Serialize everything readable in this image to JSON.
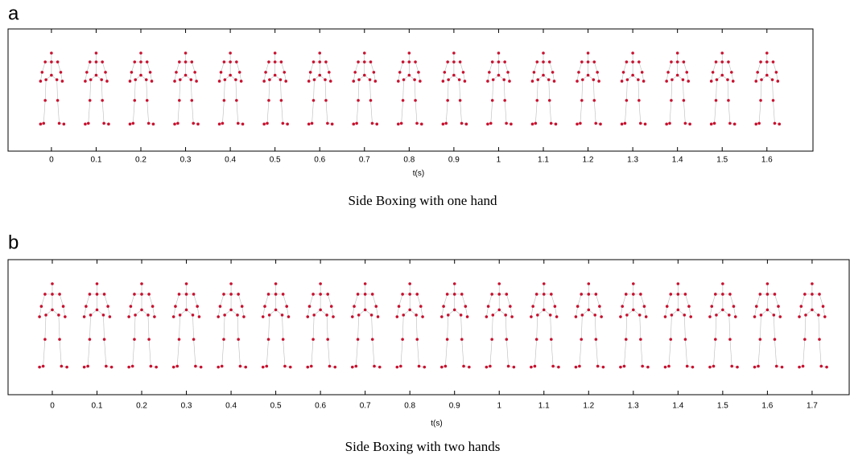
{
  "chart_data": [
    {
      "type": "skeleton-sequence",
      "panel_label": "a",
      "title": "Side Boxing with one hand",
      "xlabel": "t(s)",
      "xlim": [
        -0.097,
        1.703
      ],
      "xticks": [
        0,
        0.1,
        0.2,
        0.3,
        0.4,
        0.5,
        0.6,
        0.7,
        0.8,
        0.9,
        1,
        1.1,
        1.2,
        1.3,
        1.4,
        1.5,
        1.6
      ],
      "color": "#c8102e"
    },
    {
      "type": "skeleton-sequence",
      "panel_label": "b",
      "title": "Side Boxing with two hands",
      "xlabel": "t(s)",
      "xlim": [
        -0.099,
        1.783
      ],
      "xticks": [
        0,
        0.1,
        0.2,
        0.3,
        0.4,
        0.5,
        0.6,
        0.7,
        0.8,
        0.9,
        1,
        1.1,
        1.2,
        1.3,
        1.4,
        1.5,
        1.6,
        1.7
      ],
      "color": "#c8102e"
    }
  ]
}
